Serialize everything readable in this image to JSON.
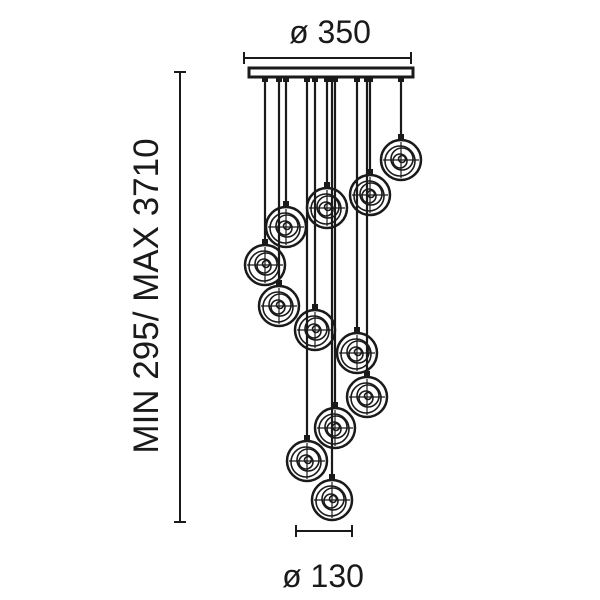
{
  "dimensions": {
    "canopy_diameter": "ø 350",
    "globe_diameter": "ø 130",
    "height_range": "MIN 295/ MAX 3710"
  },
  "colors": {
    "line": "#1a1a1a",
    "background": "#ffffff"
  }
}
